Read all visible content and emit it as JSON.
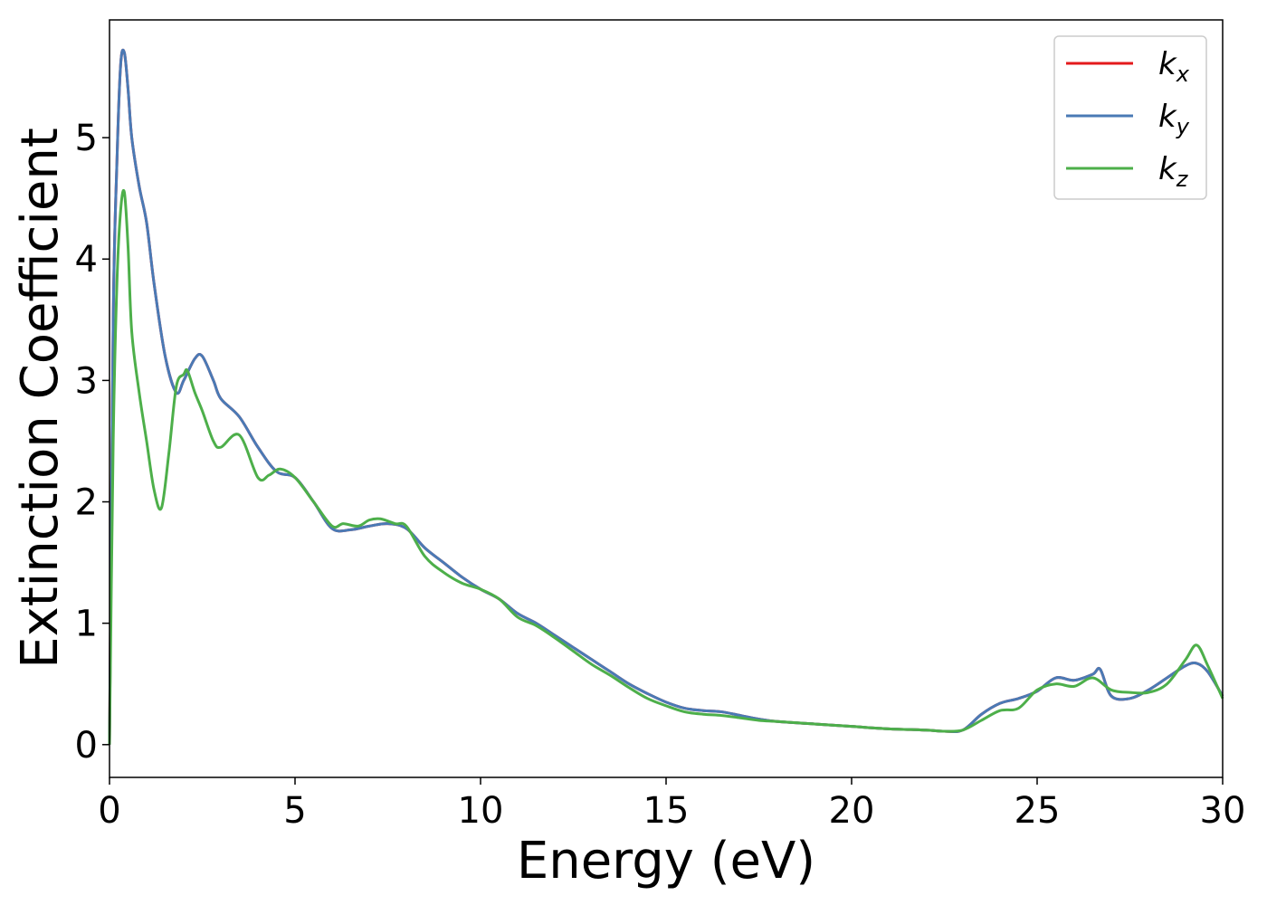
{
  "chart_data": {
    "type": "line",
    "xlabel": "Energy (eV)",
    "ylabel": "Extinction Coefficient",
    "xlim": [
      0,
      30
    ],
    "ylim": [
      -0.27,
      5.97
    ],
    "xticks": [
      0,
      5,
      10,
      15,
      20,
      25,
      30
    ],
    "yticks": [
      0,
      1,
      2,
      3,
      4,
      5
    ],
    "xtick_labels": [
      "0",
      "5",
      "10",
      "15",
      "20",
      "25",
      "30"
    ],
    "ytick_labels": [
      "0",
      "1",
      "2",
      "3",
      "4",
      "5"
    ],
    "grid": false,
    "legend_position": "top-right",
    "series": [
      {
        "name": "k",
        "subscript": "x",
        "color": "#e41a1c",
        "x": [
          0,
          0.1,
          0.2,
          0.3,
          0.4,
          0.5,
          0.6,
          0.8,
          1.0,
          1.2,
          1.5,
          1.8,
          2.0,
          2.3,
          2.5,
          2.8,
          3.0,
          3.5,
          4.0,
          4.5,
          5.0,
          5.5,
          6.0,
          6.5,
          7.0,
          7.5,
          8.0,
          8.5,
          9.0,
          9.5,
          10.0,
          10.5,
          11.0,
          11.5,
          12.0,
          12.5,
          13.0,
          13.5,
          14.0,
          14.5,
          15.0,
          15.5,
          16.0,
          16.5,
          17.0,
          17.5,
          18.0,
          19.0,
          20.0,
          21.0,
          22.0,
          22.5,
          23.0,
          23.5,
          24.0,
          24.5,
          25.0,
          25.5,
          26.0,
          26.5,
          26.7,
          27.0,
          27.5,
          28.0,
          28.5,
          29.0,
          29.3,
          29.6,
          30.0
        ],
        "y": [
          0.0,
          3.5,
          4.8,
          5.6,
          5.7,
          5.4,
          5.0,
          4.6,
          4.3,
          3.8,
          3.2,
          2.9,
          3.0,
          3.18,
          3.2,
          3.0,
          2.85,
          2.7,
          2.45,
          2.25,
          2.2,
          2.0,
          1.78,
          1.77,
          1.8,
          1.82,
          1.78,
          1.62,
          1.5,
          1.38,
          1.28,
          1.2,
          1.08,
          1.0,
          0.9,
          0.8,
          0.7,
          0.6,
          0.5,
          0.42,
          0.35,
          0.3,
          0.28,
          0.27,
          0.24,
          0.21,
          0.19,
          0.17,
          0.15,
          0.13,
          0.12,
          0.11,
          0.12,
          0.25,
          0.34,
          0.38,
          0.44,
          0.55,
          0.53,
          0.58,
          0.62,
          0.4,
          0.38,
          0.45,
          0.55,
          0.65,
          0.67,
          0.6,
          0.4
        ]
      },
      {
        "name": "k",
        "subscript": "y",
        "color": "#4a7ab5",
        "x": [
          0,
          0.1,
          0.2,
          0.3,
          0.4,
          0.5,
          0.6,
          0.8,
          1.0,
          1.2,
          1.5,
          1.8,
          2.0,
          2.3,
          2.5,
          2.8,
          3.0,
          3.5,
          4.0,
          4.5,
          5.0,
          5.5,
          6.0,
          6.5,
          7.0,
          7.5,
          8.0,
          8.5,
          9.0,
          9.5,
          10.0,
          10.5,
          11.0,
          11.5,
          12.0,
          12.5,
          13.0,
          13.5,
          14.0,
          14.5,
          15.0,
          15.5,
          16.0,
          16.5,
          17.0,
          17.5,
          18.0,
          19.0,
          20.0,
          21.0,
          22.0,
          22.5,
          23.0,
          23.5,
          24.0,
          24.5,
          25.0,
          25.5,
          26.0,
          26.5,
          26.7,
          27.0,
          27.5,
          28.0,
          28.5,
          29.0,
          29.3,
          29.6,
          30.0
        ],
        "y": [
          0.0,
          3.5,
          4.8,
          5.6,
          5.7,
          5.4,
          5.0,
          4.6,
          4.3,
          3.8,
          3.2,
          2.9,
          3.0,
          3.18,
          3.2,
          3.0,
          2.85,
          2.7,
          2.45,
          2.25,
          2.2,
          2.0,
          1.78,
          1.77,
          1.8,
          1.82,
          1.78,
          1.62,
          1.5,
          1.38,
          1.28,
          1.2,
          1.08,
          1.0,
          0.9,
          0.8,
          0.7,
          0.6,
          0.5,
          0.42,
          0.35,
          0.3,
          0.28,
          0.27,
          0.24,
          0.21,
          0.19,
          0.17,
          0.15,
          0.13,
          0.12,
          0.11,
          0.12,
          0.25,
          0.34,
          0.38,
          0.44,
          0.55,
          0.53,
          0.58,
          0.62,
          0.4,
          0.38,
          0.45,
          0.55,
          0.65,
          0.67,
          0.6,
          0.4
        ]
      },
      {
        "name": "k",
        "subscript": "z",
        "color": "#4daf4a",
        "x": [
          0,
          0.1,
          0.2,
          0.3,
          0.4,
          0.5,
          0.6,
          0.8,
          1.0,
          1.2,
          1.4,
          1.6,
          1.8,
          2.0,
          2.1,
          2.3,
          2.5,
          2.8,
          3.0,
          3.5,
          4.0,
          4.3,
          4.6,
          5.0,
          5.5,
          6.0,
          6.3,
          6.7,
          7.0,
          7.3,
          7.7,
          8.0,
          8.5,
          9.0,
          9.5,
          10.0,
          10.5,
          11.0,
          11.5,
          12.0,
          12.5,
          13.0,
          13.5,
          14.0,
          14.5,
          15.0,
          15.5,
          16.0,
          16.5,
          17.0,
          17.5,
          18.0,
          19.0,
          20.0,
          21.0,
          22.0,
          22.5,
          23.0,
          23.5,
          24.0,
          24.5,
          25.0,
          25.5,
          26.0,
          26.5,
          27.0,
          27.5,
          28.0,
          28.5,
          29.0,
          29.3,
          29.6,
          30.0
        ],
        "y": [
          0.0,
          2.5,
          3.8,
          4.4,
          4.55,
          4.1,
          3.4,
          2.9,
          2.5,
          2.1,
          1.95,
          2.4,
          2.95,
          3.05,
          3.08,
          2.9,
          2.75,
          2.5,
          2.45,
          2.55,
          2.2,
          2.22,
          2.27,
          2.2,
          2.0,
          1.8,
          1.82,
          1.8,
          1.85,
          1.86,
          1.82,
          1.8,
          1.55,
          1.42,
          1.33,
          1.28,
          1.2,
          1.05,
          0.98,
          0.88,
          0.77,
          0.66,
          0.57,
          0.47,
          0.38,
          0.32,
          0.27,
          0.25,
          0.24,
          0.22,
          0.2,
          0.19,
          0.17,
          0.15,
          0.13,
          0.12,
          0.11,
          0.12,
          0.2,
          0.28,
          0.3,
          0.45,
          0.5,
          0.48,
          0.55,
          0.45,
          0.43,
          0.43,
          0.5,
          0.7,
          0.82,
          0.65,
          0.38
        ]
      }
    ]
  }
}
